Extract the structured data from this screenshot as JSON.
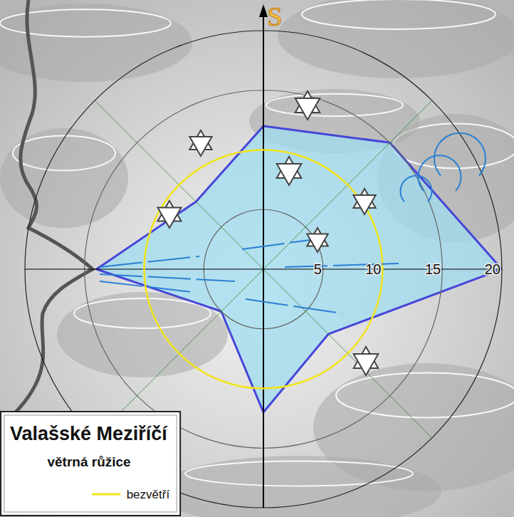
{
  "chart_data": {
    "type": "radar",
    "title": "Valašské Meziříčí",
    "subtitle": "větrná růžice",
    "categories": [
      "S",
      null,
      null,
      null,
      null,
      null,
      null,
      null
    ],
    "values": [
      12,
      15,
      20,
      7.7,
      12,
      5,
      14,
      8
    ],
    "color": "#4646d8",
    "ylim": [
      0,
      20
    ],
    "yticks": [
      5,
      10,
      15,
      20
    ],
    "grid": true,
    "legend": "bottom-left",
    "calm": {
      "name": "bezvětří",
      "value": 10,
      "color": "#f2e31c"
    }
  }
}
